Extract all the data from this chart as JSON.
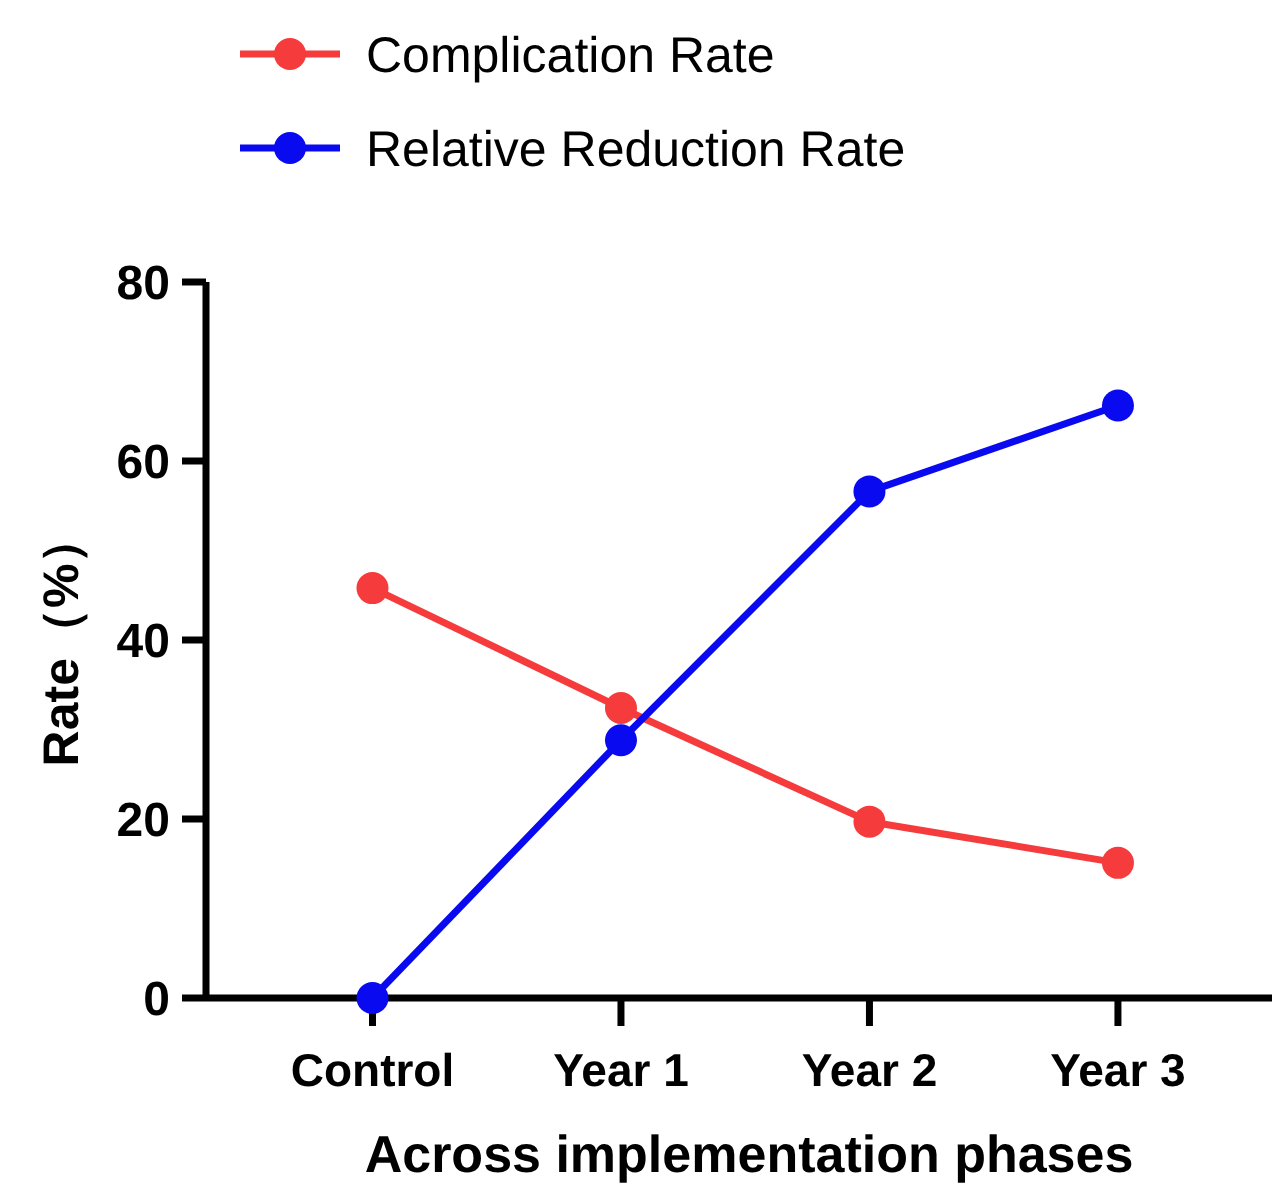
{
  "chart_data": {
    "type": "line",
    "xlabel": "Across implementation phases",
    "ylabel": "Rate（%）",
    "categories": [
      "Control",
      "Year 1",
      "Year 2",
      "Year 3"
    ],
    "series": [
      {
        "name": "Complication Rate",
        "color": "#f53b3b",
        "values": [
          45.8,
          32.4,
          19.7,
          15.1
        ]
      },
      {
        "name": "Relative Reduction Rate",
        "color": "#0a0af0",
        "values": [
          0,
          28.8,
          56.6,
          66.2
        ]
      }
    ],
    "ylim": [
      0,
      80
    ],
    "yticks": [
      0,
      20,
      40,
      60,
      80
    ],
    "marker": "circle",
    "legend": "top",
    "grid": false
  }
}
